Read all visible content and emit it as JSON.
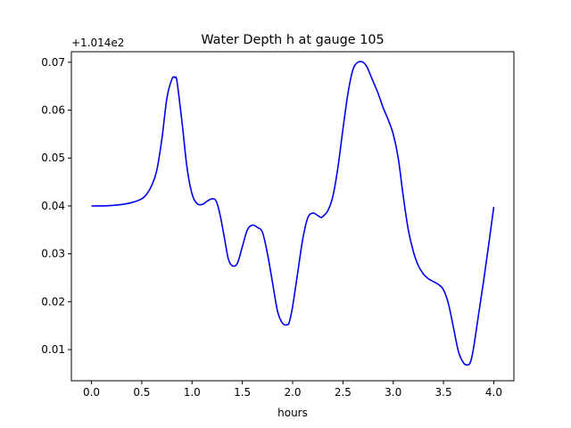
{
  "chart_data": {
    "type": "line",
    "title": "Water Depth h at gauge 105",
    "xlabel": "hours",
    "ylabel": "",
    "offset_label": "+1.014e2",
    "xlim": [
      -0.2,
      4.2
    ],
    "ylim": [
      0.0035,
      0.0722
    ],
    "xticks": [
      0.0,
      0.5,
      1.0,
      1.5,
      2.0,
      2.5,
      3.0,
      3.5,
      4.0
    ],
    "xtick_labels": [
      "0.0",
      "0.5",
      "1.0",
      "1.5",
      "2.0",
      "2.5",
      "3.0",
      "3.5",
      "4.0"
    ],
    "yticks": [
      0.01,
      0.02,
      0.03,
      0.04,
      0.05,
      0.06,
      0.07
    ],
    "ytick_labels": [
      "0.01",
      "0.02",
      "0.03",
      "0.04",
      "0.05",
      "0.06",
      "0.07"
    ],
    "grid": false,
    "series": [
      {
        "color": "#0000ee",
        "x": [
          0.0,
          0.1,
          0.2,
          0.3,
          0.4,
          0.5,
          0.55,
          0.6,
          0.65,
          0.7,
          0.75,
          0.8,
          0.83,
          0.85,
          0.9,
          0.95,
          1.0,
          1.05,
          1.1,
          1.15,
          1.2,
          1.24,
          1.28,
          1.32,
          1.36,
          1.4,
          1.45,
          1.5,
          1.55,
          1.6,
          1.65,
          1.7,
          1.75,
          1.8,
          1.85,
          1.9,
          1.95,
          1.97,
          2.0,
          2.05,
          2.1,
          2.15,
          2.2,
          2.25,
          2.28,
          2.3,
          2.35,
          2.4,
          2.45,
          2.5,
          2.55,
          2.6,
          2.65,
          2.7,
          2.74,
          2.77,
          2.8,
          2.85,
          2.9,
          2.95,
          3.0,
          3.05,
          3.1,
          3.15,
          3.2,
          3.25,
          3.3,
          3.35,
          3.4,
          3.45,
          3.5,
          3.55,
          3.6,
          3.65,
          3.7,
          3.74,
          3.77,
          3.8,
          3.85,
          3.9,
          3.95,
          4.0
        ],
        "y": [
          0.04,
          0.04,
          0.0401,
          0.0403,
          0.0407,
          0.0415,
          0.0425,
          0.0443,
          0.0475,
          0.054,
          0.0625,
          0.0665,
          0.0668,
          0.066,
          0.0575,
          0.048,
          0.0425,
          0.0405,
          0.0403,
          0.041,
          0.0415,
          0.041,
          0.038,
          0.0335,
          0.029,
          0.0275,
          0.028,
          0.0315,
          0.035,
          0.036,
          0.0355,
          0.0345,
          0.03,
          0.024,
          0.018,
          0.0155,
          0.0152,
          0.016,
          0.019,
          0.026,
          0.033,
          0.0375,
          0.0385,
          0.038,
          0.0376,
          0.0378,
          0.039,
          0.042,
          0.048,
          0.056,
          0.0635,
          0.0685,
          0.07,
          0.07,
          0.069,
          0.0675,
          0.066,
          0.0635,
          0.0605,
          0.058,
          0.055,
          0.05,
          0.042,
          0.035,
          0.0305,
          0.0275,
          0.0258,
          0.0248,
          0.0242,
          0.0236,
          0.0225,
          0.0195,
          0.0145,
          0.0095,
          0.0072,
          0.0068,
          0.0075,
          0.0105,
          0.0175,
          0.0245,
          0.032,
          0.0398
        ]
      }
    ]
  }
}
